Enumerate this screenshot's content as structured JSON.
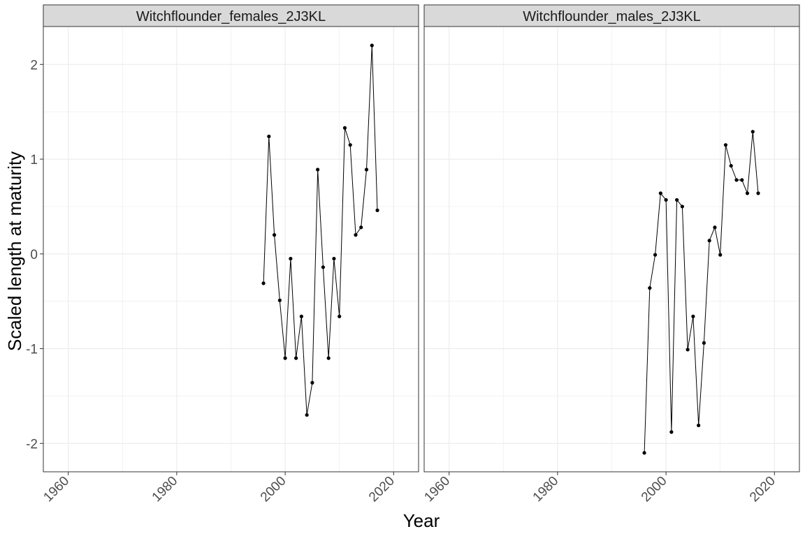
{
  "chart_data": {
    "type": "line",
    "xlabel": "Year",
    "ylabel": "Scaled length at maturity",
    "xlim": [
      1955.4,
      2024.6
    ],
    "ylim": [
      -2.3,
      2.4
    ],
    "x_ticks": [
      1960,
      1980,
      2000,
      2020
    ],
    "x_minor_ticks": [
      1970,
      1990,
      2010
    ],
    "y_ticks": [
      -2,
      -1,
      0,
      1,
      2
    ],
    "y_minor_ticks": [
      -1.5,
      -0.5,
      0.5,
      1.5
    ],
    "x_tick_labels": [
      "1960",
      "1980",
      "2000",
      "2020"
    ],
    "y_tick_labels": [
      "-2",
      "-1",
      "0",
      "1",
      "2"
    ],
    "grid": true,
    "legend": "none",
    "colors": {
      "line": "#000000",
      "strip_fill": "#d9d9d9",
      "grid": "#ebebeb",
      "border": "#333333"
    },
    "panels": [
      {
        "title": "Witchflounder_females_2J3KL",
        "x": [
          1996,
          1997,
          1998,
          1999,
          2000,
          2001,
          2002,
          2003,
          2004,
          2005,
          2006,
          2007,
          2008,
          2009,
          2010,
          2011,
          2012,
          2013,
          2014,
          2015,
          2016,
          2017
        ],
        "y": [
          -0.31,
          1.24,
          0.2,
          -0.49,
          -1.1,
          -0.05,
          -1.1,
          -0.66,
          -1.7,
          -1.36,
          0.89,
          -0.14,
          -1.1,
          -0.05,
          -0.66,
          1.33,
          1.15,
          0.2,
          0.28,
          0.89,
          2.2,
          0.46
        ]
      },
      {
        "title": "Witchflounder_males_2J3KL",
        "x": [
          1996,
          1997,
          1998,
          1999,
          2000,
          2001,
          2002,
          2003,
          2004,
          2005,
          2006,
          2007,
          2008,
          2009,
          2010,
          2011,
          2012,
          2013,
          2014,
          2015,
          2016,
          2017
        ],
        "y": [
          -2.1,
          -0.36,
          -0.01,
          0.64,
          0.57,
          -1.88,
          0.57,
          0.5,
          -1.01,
          -0.66,
          -1.81,
          -0.94,
          0.14,
          0.28,
          -0.01,
          1.15,
          0.93,
          0.78,
          0.78,
          0.64,
          1.29,
          0.64
        ]
      }
    ]
  }
}
